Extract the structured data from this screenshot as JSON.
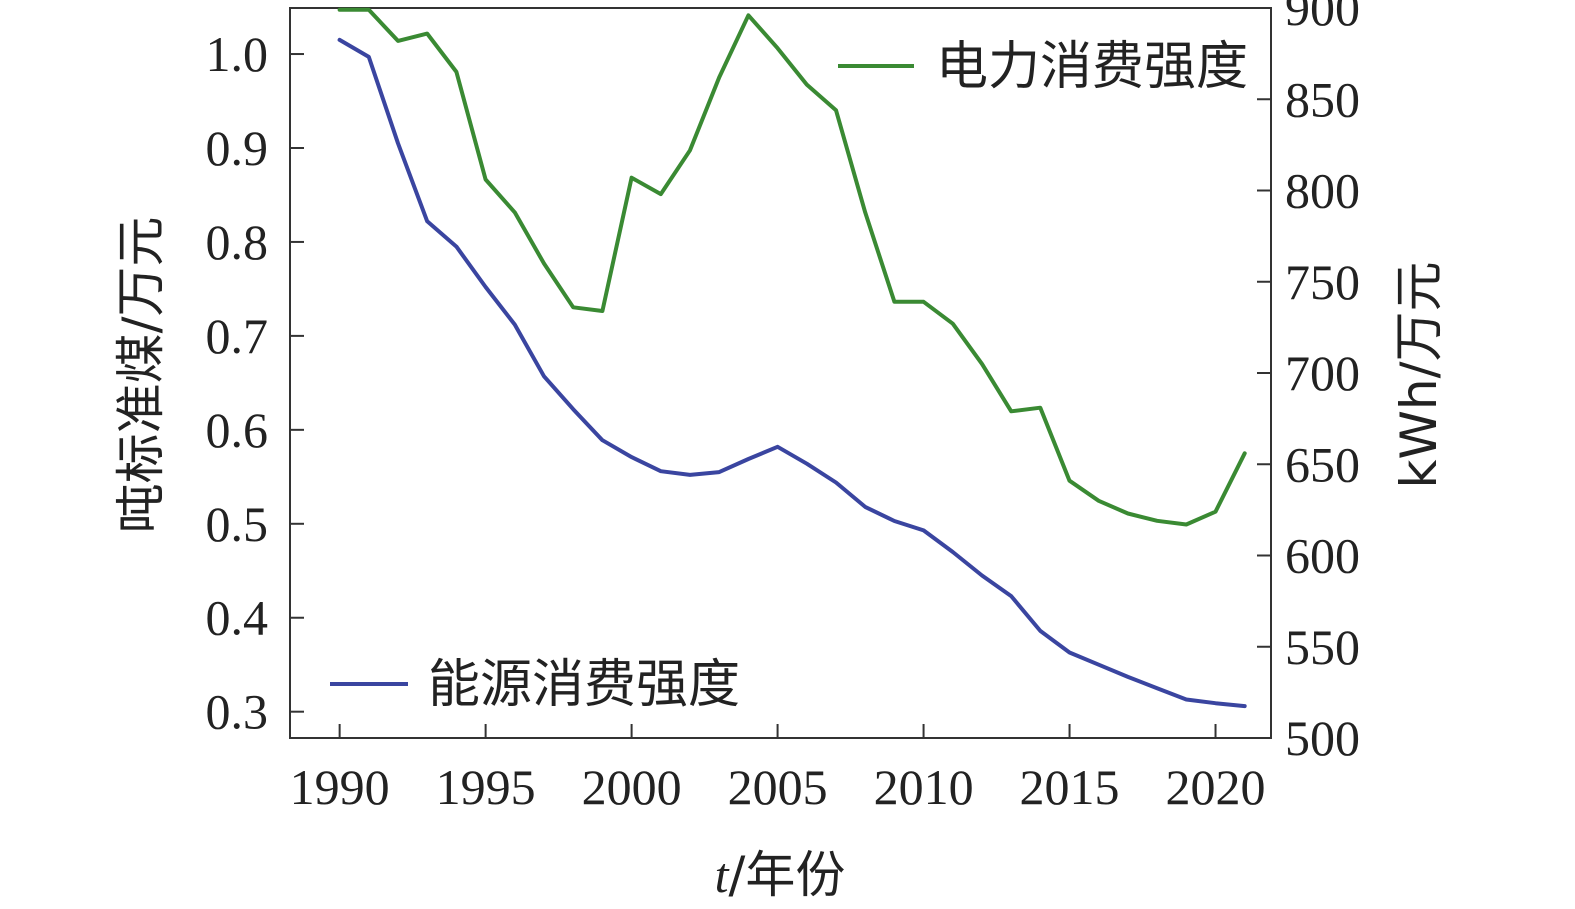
{
  "chart_data": {
    "type": "line",
    "x": [
      1990,
      1991,
      1992,
      1993,
      1994,
      1995,
      1996,
      1997,
      1998,
      1999,
      2000,
      2001,
      2002,
      2003,
      2004,
      2005,
      2006,
      2007,
      2008,
      2009,
      2010,
      2011,
      2012,
      2013,
      2014,
      2015,
      2016,
      2017,
      2018,
      2019,
      2020,
      2021
    ],
    "xlabel_var": "t",
    "xlabel_unit": "/年份",
    "ylabel_left": "吨标准煤/万元",
    "ylabel_right": "kWh/万元",
    "x_range": [
      1988.3,
      2021.9
    ],
    "xticks": [
      "1990",
      "1995",
      "2000",
      "2005",
      "2010",
      "2015",
      "2020"
    ],
    "yticks_left": [
      "1.0",
      "0.9",
      "0.8",
      "0.7",
      "0.6",
      "0.5",
      "0.4",
      "0.3"
    ],
    "yticks_right": [
      "900",
      "850",
      "800",
      "750",
      "700",
      "650",
      "600",
      "550",
      "500"
    ],
    "ylim_left": [
      0.272,
      1.049
    ],
    "ylim_right": [
      500,
      900
    ],
    "grid": false,
    "series": [
      {
        "name": "能源消费强度",
        "axis": "left",
        "color": "#3a45a0",
        "values": [
          1.015,
          0.997,
          0.905,
          0.822,
          0.795,
          0.752,
          0.712,
          0.657,
          0.622,
          0.589,
          0.571,
          0.556,
          0.552,
          0.555,
          0.569,
          0.582,
          0.564,
          0.544,
          0.518,
          0.503,
          0.493,
          0.47,
          0.445,
          0.423,
          0.386,
          0.363,
          0.35,
          0.337,
          0.325,
          0.313,
          0.309,
          0.306
        ]
      },
      {
        "name": "电力消费强度",
        "axis": "right",
        "color": "#3a8a33",
        "values": [
          899,
          899,
          882,
          886,
          865,
          806,
          788,
          760,
          736,
          734,
          807,
          798,
          822,
          862,
          896,
          878,
          858,
          844,
          788,
          739,
          739,
          727,
          705,
          679,
          681,
          641,
          630,
          623,
          619,
          617,
          624,
          656
        ]
      }
    ]
  }
}
